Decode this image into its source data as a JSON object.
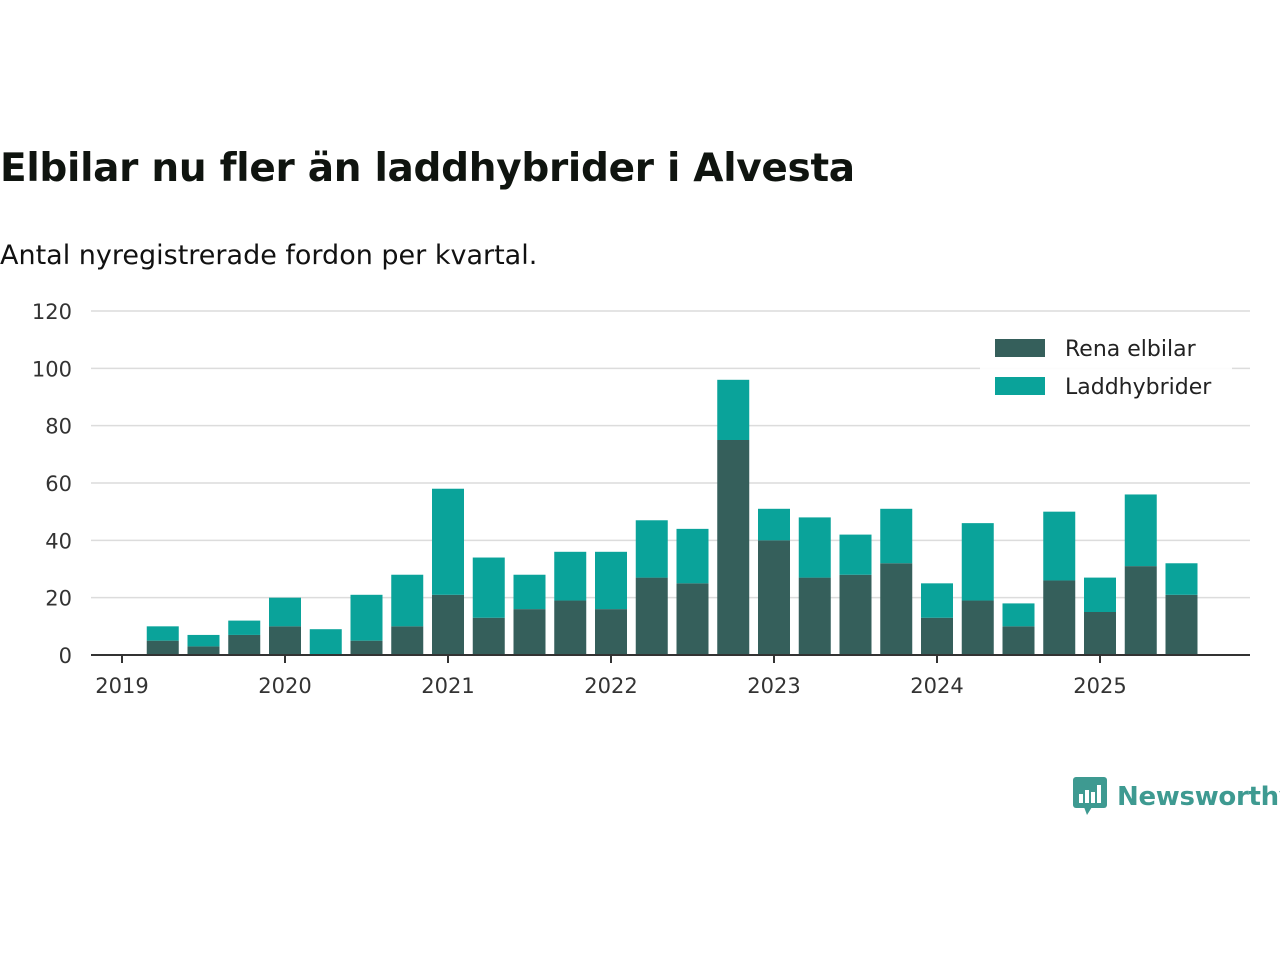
{
  "title": "Elbilar nu fler än laddhybrider i Alvesta",
  "subtitle": "Antal nyregistrerade fordon per kvartal.",
  "brand": "Newsworthy",
  "colors": {
    "electric": "#355f5b",
    "hybrid": "#0aa39a",
    "grid": "#dcdcdc",
    "axis": "#333333"
  },
  "chart_data": {
    "type": "bar",
    "stacked": true,
    "categories": [
      "2019 Q2",
      "2019 Q3",
      "2019 Q4",
      "2020 Q1",
      "2020 Q2",
      "2020 Q3",
      "2020 Q4",
      "2021 Q1",
      "2021 Q2",
      "2021 Q3",
      "2021 Q4",
      "2022 Q1",
      "2022 Q2",
      "2022 Q3",
      "2022 Q4",
      "2023 Q1",
      "2023 Q2",
      "2023 Q3",
      "2023 Q4",
      "2024 Q1",
      "2024 Q2",
      "2024 Q3",
      "2024 Q4",
      "2025 Q1",
      "2025 Q2",
      "2025 Q3"
    ],
    "series": [
      {
        "name": "Rena elbilar",
        "values": [
          5,
          3,
          7,
          10,
          0,
          5,
          10,
          21,
          13,
          16,
          19,
          16,
          27,
          25,
          75,
          40,
          27,
          28,
          32,
          13,
          19,
          10,
          26,
          15,
          31,
          21
        ]
      },
      {
        "name": "Laddhybrider",
        "values": [
          5,
          4,
          5,
          10,
          9,
          16,
          18,
          37,
          21,
          12,
          17,
          20,
          20,
          19,
          21,
          11,
          21,
          14,
          19,
          12,
          27,
          8,
          24,
          12,
          25,
          11
        ]
      }
    ],
    "x_tick_labels": [
      "2019",
      "2020",
      "2021",
      "2022",
      "2023",
      "2024",
      "2025"
    ],
    "y_ticks": [
      0,
      20,
      40,
      60,
      80,
      100,
      120
    ],
    "ylim": [
      0,
      120
    ],
    "legend_position": "top-right",
    "grid": true
  }
}
